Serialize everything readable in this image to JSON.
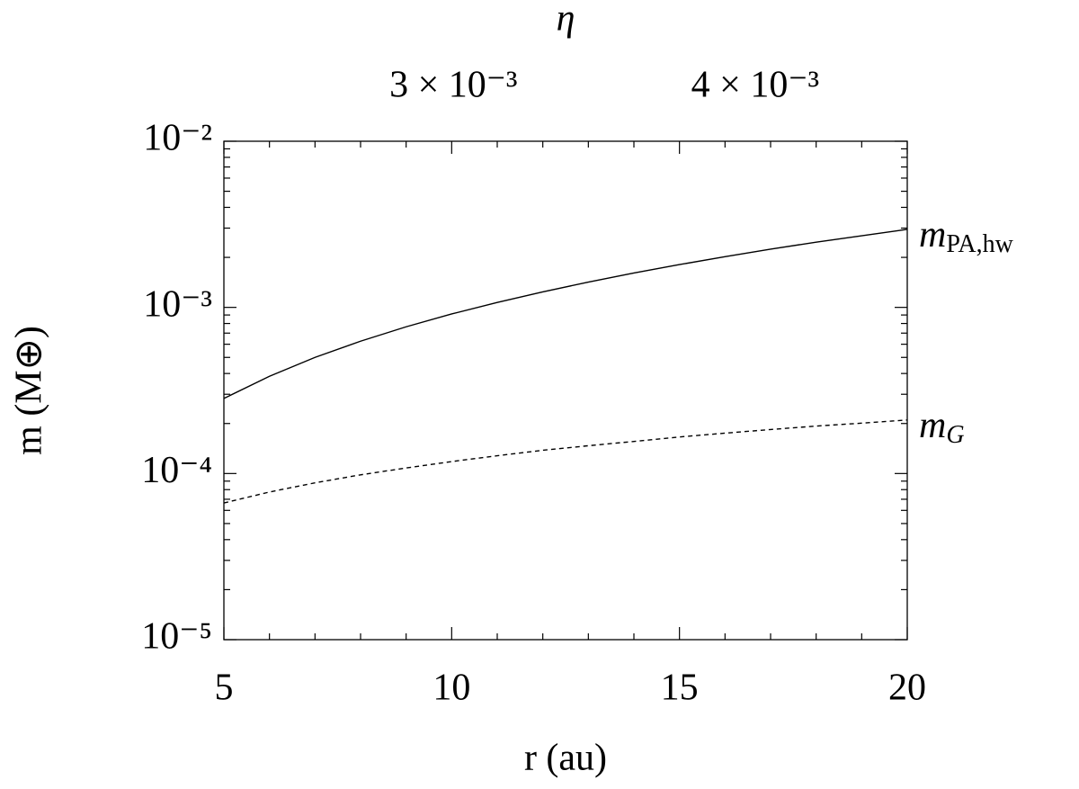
{
  "chart_data": {
    "type": "line",
    "x_label": "r (au)",
    "y_label": "m (M⊕)",
    "x2_label": "η",
    "x": [
      5,
      6,
      7,
      8,
      9,
      10,
      11,
      12,
      13,
      14,
      15,
      16,
      17,
      18,
      19,
      20
    ],
    "series": [
      {
        "name": "mPA,hw",
        "color": "#000000",
        "dash": "solid",
        "values": [
          0.000283,
          0.000385,
          0.0005,
          0.000626,
          0.000764,
          0.000913,
          0.00107,
          0.00124,
          0.00142,
          0.00161,
          0.00181,
          0.00202,
          0.00224,
          0.00247,
          0.0027,
          0.00295
        ]
      },
      {
        "name": "mG",
        "color": "#000000",
        "dash": "dashed",
        "values": [
          6.65e-05,
          7.74e-05,
          8.79e-05,
          9.82e-05,
          0.000108,
          0.000118,
          0.000128,
          0.000138,
          0.000147,
          0.000156,
          0.000166,
          0.000175,
          0.000184,
          0.000193,
          0.000201,
          0.00021
        ]
      }
    ],
    "xlim": [
      5,
      20
    ],
    "xticks": [
      5,
      10,
      15,
      20
    ],
    "xminorticks": [
      6,
      7,
      8,
      9,
      11,
      12,
      13,
      14,
      16,
      17,
      18,
      19
    ],
    "ylim": [
      1e-05,
      0.01
    ],
    "ylog": true,
    "yticks": [
      {
        "value": 1e-05,
        "label": "10⁻⁵"
      },
      {
        "value": 0.0001,
        "label": "10⁻⁴"
      },
      {
        "value": 0.001,
        "label": "10⁻³"
      },
      {
        "value": 0.01,
        "label": "10⁻²"
      }
    ],
    "yminorticks": [
      2e-05,
      3e-05,
      4e-05,
      5e-05,
      6e-05,
      7e-05,
      8e-05,
      9e-05,
      0.0002,
      0.0003,
      0.0004,
      0.0005,
      0.0006,
      0.0007,
      0.0008,
      0.0009,
      0.002,
      0.003,
      0.004,
      0.005,
      0.006,
      0.007,
      0.008,
      0.009
    ],
    "x2lim": [
      0.00202,
      0.004437
    ],
    "x2scale": "power",
    "x2exponent": 1.76,
    "x2ticks": [
      {
        "value": 0.003,
        "label": "3 × 10⁻³"
      },
      {
        "value": 0.004,
        "label": "4 × 10⁻³"
      }
    ],
    "grid": false
  }
}
